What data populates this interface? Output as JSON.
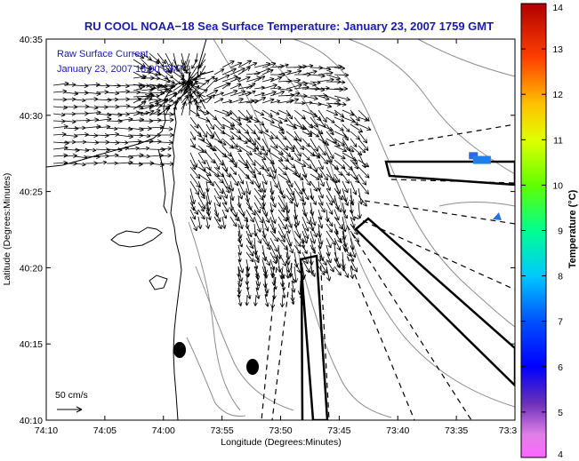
{
  "chart_data": {
    "type": "map",
    "title": "RU COOL  NOAA−18  Sea Surface Temperature:  January 23, 2007 1759 GMT",
    "overlay_label_1": "Raw Surface Current",
    "overlay_label_2": "January 23, 2007 18:00 GMT",
    "xlabel": "Longitude (Degrees:Minutes)",
    "ylabel": "Latitude (Degrees:Minutes)",
    "x_ticks": [
      "74:10",
      "74:05",
      "74:00",
      "73:55",
      "73:50",
      "73:45",
      "73:40",
      "73:35",
      "73:3"
    ],
    "y_ticks": [
      "40:35",
      "40:30",
      "40:25",
      "40:20",
      "40:15",
      "40:10"
    ],
    "xlim_minutes_west": [
      -610,
      -570
    ],
    "ylim_minutes_north": [
      2410,
      2435
    ],
    "scale_label": "50 cm/s",
    "colorbar": {
      "label": "Temperature (°C)",
      "min": 4,
      "max": 14,
      "ticks": [
        "14",
        "13",
        "12",
        "11",
        "10",
        "9",
        "8",
        "7",
        "6",
        "5",
        "4"
      ]
    },
    "sst_patches": [
      {
        "lon_min": -573.55,
        "lat_min": 2427.35,
        "color": "#2a6bdc"
      },
      {
        "lon_min": -573.2,
        "lat_min": 2427.1,
        "color": "#1e7fe8"
      },
      {
        "lon_min": -571.6,
        "lat_min": 2423.4,
        "color": "#2a70e0"
      }
    ]
  }
}
